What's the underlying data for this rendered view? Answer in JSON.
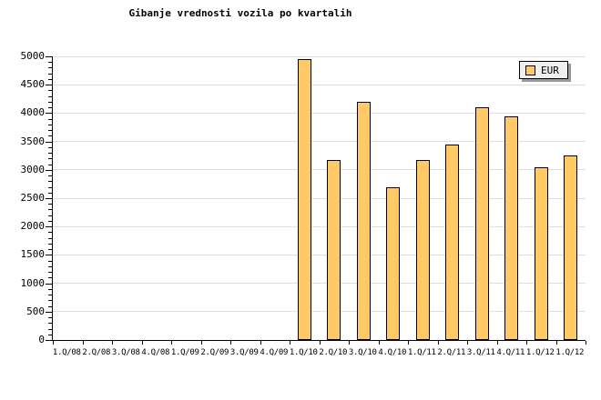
{
  "title": "Gibanje vrednosti vozila po kvartalih",
  "legend": {
    "label": "EUR"
  },
  "colors": {
    "background": "#ffffff",
    "bar_fill": "#FFC966",
    "bar_border": "#000000",
    "grid": "#DEDEDE",
    "axis": "#000000",
    "text": "#000000",
    "legend_bg": "#EFEFEF",
    "legend_border": "#000000",
    "legend_shadow": "#999999"
  },
  "y_axis": {
    "min": 0,
    "max": 5000,
    "tick_interval": 500,
    "minor_tick_interval": 100,
    "tick_labels": [
      "0",
      "500",
      "1000",
      "1500",
      "2000",
      "2500",
      "3000",
      "3500",
      "4000",
      "4500",
      "5000"
    ]
  },
  "chart_data": {
    "type": "bar",
    "title": "Gibanje vrednosti vozila po kvartalih",
    "categories": [
      "1.Q/08",
      "2.Q/08",
      "3.Q/08",
      "4.Q/08",
      "1.Q/09",
      "2.Q/09",
      "3.Q/09",
      "4.Q/09",
      "1.Q/10",
      "2.Q/10",
      "3.Q/10",
      "4.Q/10",
      "1.Q/11",
      "2.Q/11",
      "3.Q/11",
      "4.Q/11",
      "1.Q/12",
      "1.Q/12"
    ],
    "series": [
      {
        "name": "EUR",
        "values": [
          null,
          null,
          null,
          null,
          null,
          null,
          null,
          null,
          4950,
          3175,
          4200,
          2700,
          3175,
          3450,
          4100,
          3950,
          3050,
          3250
        ]
      }
    ],
    "xlabel": "",
    "ylabel": "",
    "ylim": [
      0,
      5000
    ],
    "grid": true,
    "legend_position": "top-right"
  }
}
